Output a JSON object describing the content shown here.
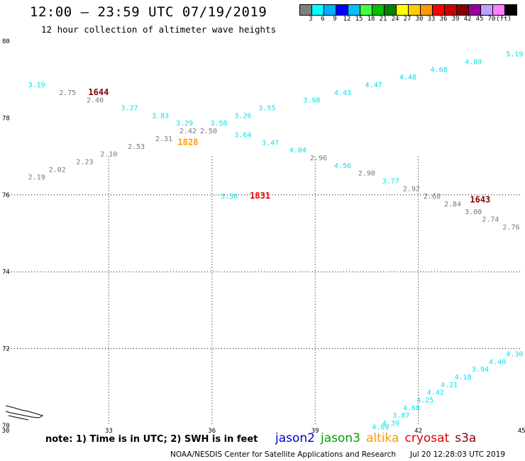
{
  "header": {
    "title": "12:00 – 23:59 UTC 07/19/2019",
    "subtitle": "12 hour collection of altimeter wave heights"
  },
  "legend": {
    "colors": [
      "#808080",
      "#00ffff",
      "#00b0ff",
      "#0000ff",
      "#00c0ff",
      "#40ff40",
      "#00c000",
      "#008000",
      "#ffff00",
      "#ffcc00",
      "#ff9900",
      "#ff0000",
      "#cc0000",
      "#880000",
      "#990099",
      "#c0a0ff",
      "#ff80ff",
      "#000000"
    ],
    "labels": [
      "3",
      "6",
      "9",
      "12",
      "15",
      "18",
      "21",
      "24",
      "27",
      "30",
      "33",
      "36",
      "39",
      "42",
      "45",
      "70",
      "(ft)"
    ]
  },
  "axes": {
    "x_ticks": [
      "30",
      "33",
      "36",
      "39",
      "42",
      "45"
    ],
    "y_ticks": [
      "80",
      "78",
      "76",
      "74",
      "72",
      "70"
    ]
  },
  "observations": [
    {
      "lon": 30.9,
      "lat": 78.8,
      "v": "3.19",
      "c": "#00e5ee"
    },
    {
      "lon": 31.8,
      "lat": 78.6,
      "v": "2.75",
      "c": "#777777"
    },
    {
      "lon": 32.6,
      "lat": 78.4,
      "v": "2.40",
      "c": "#777777"
    },
    {
      "lon": 33.6,
      "lat": 78.2,
      "v": "3.27",
      "c": "#00e5ee"
    },
    {
      "lon": 34.5,
      "lat": 78.0,
      "v": "3.83",
      "c": "#00e5ee"
    },
    {
      "lon": 35.2,
      "lat": 77.8,
      "v": "3.29",
      "c": "#00e5ee"
    },
    {
      "lon": 36.2,
      "lat": 77.8,
      "v": "3.50",
      "c": "#00e5ee"
    },
    {
      "lon": 35.3,
      "lat": 77.6,
      "v": "2.42",
      "c": "#777777"
    },
    {
      "lon": 35.9,
      "lat": 77.6,
      "v": "2.50",
      "c": "#777777"
    },
    {
      "lon": 34.6,
      "lat": 77.4,
      "v": "2.31",
      "c": "#777777"
    },
    {
      "lon": 33.8,
      "lat": 77.2,
      "v": "2.53",
      "c": "#777777"
    },
    {
      "lon": 33.0,
      "lat": 77.0,
      "v": "2.10",
      "c": "#777777"
    },
    {
      "lon": 32.3,
      "lat": 76.8,
      "v": "2.23",
      "c": "#777777"
    },
    {
      "lon": 31.5,
      "lat": 76.6,
      "v": "2.02",
      "c": "#777777"
    },
    {
      "lon": 30.9,
      "lat": 76.4,
      "v": "2.19",
      "c": "#777777"
    },
    {
      "lon": 36.9,
      "lat": 78.0,
      "v": "3.26",
      "c": "#00e5ee"
    },
    {
      "lon": 37.6,
      "lat": 78.2,
      "v": "3.55",
      "c": "#00e5ee"
    },
    {
      "lon": 38.9,
      "lat": 78.4,
      "v": "3.98",
      "c": "#00e5ee"
    },
    {
      "lon": 39.8,
      "lat": 78.6,
      "v": "4.43",
      "c": "#00e5ee"
    },
    {
      "lon": 40.7,
      "lat": 78.8,
      "v": "4.47",
      "c": "#00e5ee"
    },
    {
      "lon": 41.7,
      "lat": 79.0,
      "v": "4.48",
      "c": "#00e5ee"
    },
    {
      "lon": 42.6,
      "lat": 79.2,
      "v": "4.68",
      "c": "#00e5ee"
    },
    {
      "lon": 43.6,
      "lat": 79.4,
      "v": "4.89",
      "c": "#00e5ee"
    },
    {
      "lon": 44.8,
      "lat": 79.6,
      "v": "5.19",
      "c": "#00e5ee"
    },
    {
      "lon": 36.9,
      "lat": 77.5,
      "v": "3.64",
      "c": "#00e5ee"
    },
    {
      "lon": 37.7,
      "lat": 77.3,
      "v": "3.47",
      "c": "#00e5ee"
    },
    {
      "lon": 38.5,
      "lat": 77.1,
      "v": "4.04",
      "c": "#00e5ee"
    },
    {
      "lon": 39.1,
      "lat": 76.9,
      "v": "2.96",
      "c": "#777777"
    },
    {
      "lon": 39.8,
      "lat": 76.7,
      "v": "4.56",
      "c": "#00e5ee"
    },
    {
      "lon": 40.5,
      "lat": 76.5,
      "v": "2.90",
      "c": "#777777"
    },
    {
      "lon": 41.2,
      "lat": 76.3,
      "v": "3.77",
      "c": "#00e5ee"
    },
    {
      "lon": 41.8,
      "lat": 76.1,
      "v": "2.92",
      "c": "#777777"
    },
    {
      "lon": 42.4,
      "lat": 75.9,
      "v": "2.68",
      "c": "#777777"
    },
    {
      "lon": 43.0,
      "lat": 75.7,
      "v": "2.84",
      "c": "#777777"
    },
    {
      "lon": 43.6,
      "lat": 75.5,
      "v": "3.00",
      "c": "#777777"
    },
    {
      "lon": 44.1,
      "lat": 75.3,
      "v": "2.74",
      "c": "#777777"
    },
    {
      "lon": 44.7,
      "lat": 75.1,
      "v": "2.76",
      "c": "#777777"
    },
    {
      "lon": 36.5,
      "lat": 75.9,
      "v": "3.56",
      "c": "#00e5ee"
    },
    {
      "lon": 44.8,
      "lat": 71.8,
      "v": "4.30",
      "c": "#00e5ee"
    },
    {
      "lon": 44.3,
      "lat": 71.6,
      "v": "4.40",
      "c": "#00e5ee"
    },
    {
      "lon": 43.8,
      "lat": 71.4,
      "v": "3.94",
      "c": "#00e5ee"
    },
    {
      "lon": 43.3,
      "lat": 71.2,
      "v": "4.18",
      "c": "#00e5ee"
    },
    {
      "lon": 42.9,
      "lat": 71.0,
      "v": "4.21",
      "c": "#00e5ee"
    },
    {
      "lon": 42.5,
      "lat": 70.8,
      "v": "4.42",
      "c": "#00e5ee"
    },
    {
      "lon": 42.2,
      "lat": 70.6,
      "v": "4.25",
      "c": "#00e5ee"
    },
    {
      "lon": 41.8,
      "lat": 70.4,
      "v": "4.68",
      "c": "#00e5ee"
    },
    {
      "lon": 41.5,
      "lat": 70.2,
      "v": "3.87",
      "c": "#00e5ee"
    },
    {
      "lon": 41.2,
      "lat": 70.0,
      "v": "4.39",
      "c": "#00e5ee"
    },
    {
      "lon": 40.9,
      "lat": 69.9,
      "v": "4.09",
      "c": "#00e5ee"
    }
  ],
  "times": [
    {
      "lon": 32.7,
      "lat": 78.6,
      "v": "1644",
      "c": "#880000"
    },
    {
      "lon": 35.3,
      "lat": 77.3,
      "v": "1828",
      "c": "#ff9900"
    },
    {
      "lon": 37.4,
      "lat": 75.9,
      "v": "1831",
      "c": "#ee0000"
    },
    {
      "lon": 43.8,
      "lat": 75.8,
      "v": "1643",
      "c": "#880000"
    }
  ],
  "footer": {
    "note": "note: 1) Time is in UTC; 2) SWH is in feet",
    "satellites": [
      {
        "name": "jason2",
        "color": "#0000cc"
      },
      {
        "name": "jason3",
        "color": "#00a000"
      },
      {
        "name": "altika",
        "color": "#ff9900"
      },
      {
        "name": "cryosat",
        "color": "#dd0000"
      },
      {
        "name": "s3a",
        "color": "#880000"
      }
    ],
    "credit": "NOAA/NESDIS Center for Satellite Applications and Research",
    "timestamp": "Jul 20 12:28:03 UTC 2019"
  }
}
